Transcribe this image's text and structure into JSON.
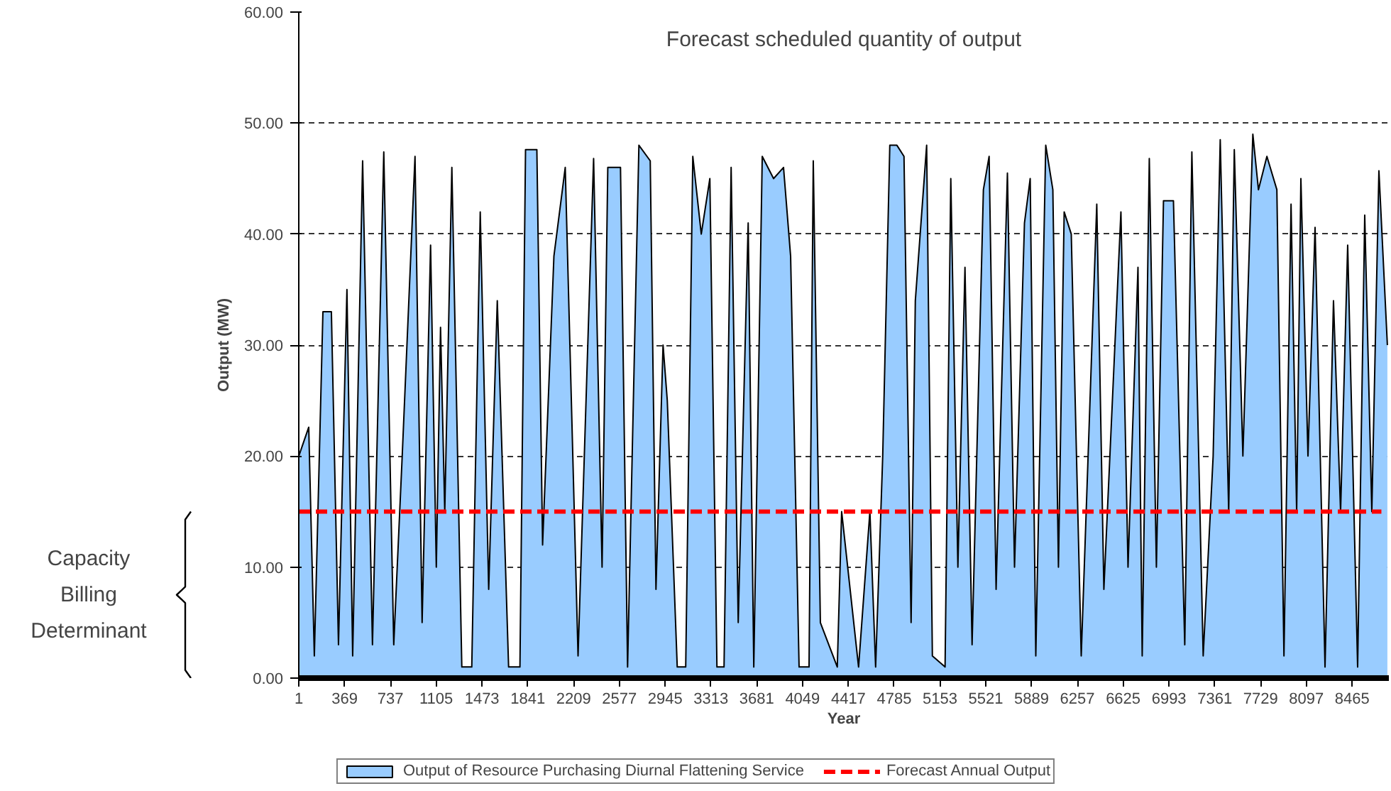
{
  "chart_data": {
    "type": "area",
    "title": "Forecast scheduled quantity of output",
    "xlabel": "Year",
    "ylabel": "Output (MW)",
    "annotations": [
      "Capacity Billing Determinant"
    ],
    "xlim": [
      1,
      8760
    ],
    "xticks": [
      1,
      369,
      737,
      1105,
      1473,
      1841,
      2209,
      2577,
      2945,
      3313,
      3681,
      4049,
      4417,
      4785,
      5153,
      5521,
      5889,
      6257,
      6625,
      6993,
      7361,
      7729,
      8097,
      8465
    ],
    "ylim": [
      0,
      60
    ],
    "yticks": [
      {
        "value": 0,
        "label": "0.00"
      },
      {
        "value": 10,
        "label": "10.00"
      },
      {
        "value": 20,
        "label": "20.00"
      },
      {
        "value": 30,
        "label": "30.00"
      },
      {
        "value": 40,
        "label": "40.00"
      },
      {
        "value": 50,
        "label": "50.00"
      },
      {
        "value": 60,
        "label": "60.00"
      }
    ],
    "grid": "y",
    "legend": "bottom",
    "series": [
      {
        "name": "Output of Resource Purchasing Diurnal Flattening Service",
        "type": "area",
        "color": "#99ccff",
        "x": [
          1,
          81,
          126,
          195,
          263,
          320,
          388,
          434,
          514,
          593,
          684,
          764,
          832,
          935,
          992,
          1060,
          1106,
          1140,
          1174,
          1231,
          1311,
          1391,
          1459,
          1527,
          1596,
          1687,
          1778,
          1823,
          1914,
          1960,
          2051,
          2142,
          2245,
          2370,
          2438,
          2484,
          2586,
          2643,
          2734,
          2825,
          2871,
          2928,
          2962,
          3042,
          3110,
          3167,
          3235,
          3304,
          3361,
          3418,
          3475,
          3532,
          3612,
          3657,
          3725,
          3816,
          3896,
          3953,
          4021,
          4101,
          4135,
          4192,
          4328,
          4363,
          4499,
          4590,
          4636,
          4693,
          4750,
          4807,
          4864,
          4921,
          4955,
          5046,
          5092,
          5194,
          5240,
          5297,
          5354,
          5411,
          5502,
          5548,
          5604,
          5695,
          5752,
          5832,
          5878,
          5923,
          6003,
          6060,
          6105,
          6151,
          6208,
          6288,
          6413,
          6470,
          6607,
          6664,
          6744,
          6778,
          6835,
          6892,
          6949,
          7029,
          7120,
          7177,
          7268,
          7348,
          7405,
          7473,
          7518,
          7587,
          7667,
          7712,
          7780,
          7860,
          7917,
          7974,
          8019,
          8053,
          8110,
          8167,
          8247,
          8315,
          8372,
          8429,
          8509,
          8566,
          8623,
          8680,
          8748
        ],
        "values": [
          20,
          22.6,
          2,
          33,
          33,
          3,
          35,
          2,
          46.6,
          3,
          47.4,
          3,
          20,
          47,
          5,
          39,
          10,
          31.6,
          15,
          46,
          1,
          1,
          42,
          8,
          34,
          1,
          1,
          47.6,
          47.6,
          12,
          38,
          46,
          2,
          46.8,
          10,
          46,
          46,
          1,
          48,
          46.6,
          8,
          30,
          25,
          1,
          1,
          47,
          40,
          45,
          1,
          1,
          46,
          5,
          41,
          1,
          47,
          45,
          46,
          38,
          1,
          1,
          46.6,
          5,
          1,
          15,
          1,
          15,
          1,
          20,
          48,
          48,
          47,
          5,
          34,
          48,
          2,
          1,
          45,
          10,
          37,
          3,
          44,
          47,
          8,
          45.5,
          10,
          41,
          45,
          2,
          48,
          44,
          10,
          42,
          40,
          2,
          42.7,
          8,
          42,
          10,
          37,
          2,
          46.8,
          10,
          43,
          43,
          3,
          47.4,
          2,
          20,
          48.5,
          15,
          47.6,
          20,
          49,
          44,
          47,
          44,
          2,
          42.7,
          15,
          45,
          20,
          40.6,
          1,
          34,
          15,
          39,
          1,
          41.7,
          15,
          45.7,
          30
        ]
      },
      {
        "name": "Forecast Annual Output",
        "type": "line",
        "color": "#ff0000",
        "line_style": "dashed",
        "x": [
          1,
          8700
        ],
        "values": [
          15,
          15
        ]
      }
    ]
  }
}
